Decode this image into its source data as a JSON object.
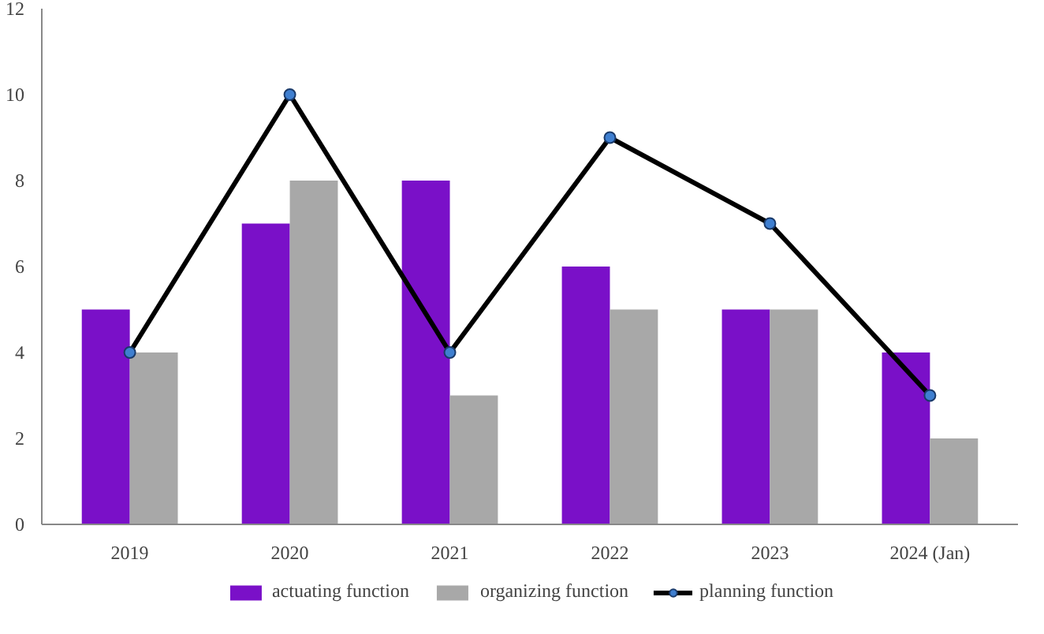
{
  "chart_data": {
    "type": "bar",
    "categories": [
      "2019",
      "2020",
      "2021",
      "2022",
      "2023",
      "2024 (Jan)"
    ],
    "series": [
      {
        "name": "actuating function",
        "color": "#7a10c8",
        "values": [
          5,
          7,
          8,
          6,
          5,
          4
        ]
      },
      {
        "name": "organizing function",
        "color": "#a8a8a8",
        "values": [
          4,
          8,
          3,
          5,
          5,
          2
        ]
      },
      {
        "name": "planning function",
        "type": "line",
        "color": "#000000",
        "values": [
          4,
          10,
          4,
          9,
          7,
          3
        ]
      }
    ],
    "ylim": [
      0,
      12
    ],
    "yticks": [
      0,
      2,
      4,
      6,
      8,
      10,
      12
    ],
    "grid": false,
    "legend": "bottom",
    "marker": "circle",
    "line_style": "solid"
  }
}
